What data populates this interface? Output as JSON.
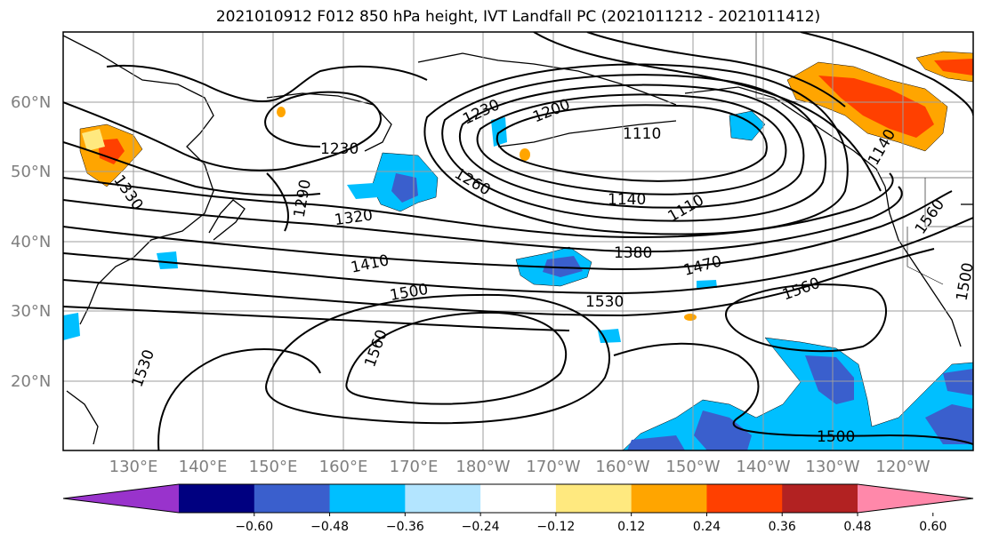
{
  "title": "2021010912 F012 850 hPa height, IVT Landfall PC (2021011212 - 2021011412)",
  "lat_labels": [
    "60°N",
    "50°N",
    "40°N",
    "30°N",
    "20°N"
  ],
  "lon_labels": [
    "130°E",
    "140°E",
    "150°E",
    "160°E",
    "170°E",
    "180°W",
    "170°W",
    "160°W",
    "150°W",
    "140°W",
    "130°W",
    "120°W"
  ],
  "contour_labels": [
    "1230",
    "1230",
    "1200",
    "1110",
    "1290",
    "1260",
    "1140",
    "1110",
    "1320",
    "1410",
    "1380",
    "1470",
    "1500",
    "1530",
    "1560",
    "1560",
    "1560",
    "1530",
    "1500",
    "1500",
    "1330",
    "1140"
  ],
  "colorbar": {
    "ticks": [
      "−0.60",
      "−0.48",
      "−0.36",
      "−0.24",
      "−0.12",
      "0.12",
      "0.24",
      "0.36",
      "0.48",
      "0.60"
    ],
    "colors": [
      "#9933cc",
      "#000080",
      "#3a5fcd",
      "#00bfff",
      "#b3e5ff",
      "#ffffff",
      "#ffe97f",
      "#ffa500",
      "#ff4000",
      "#b22222",
      "#ff88aa"
    ],
    "under_color": "#9933cc",
    "over_color": "#ff88aa"
  }
}
